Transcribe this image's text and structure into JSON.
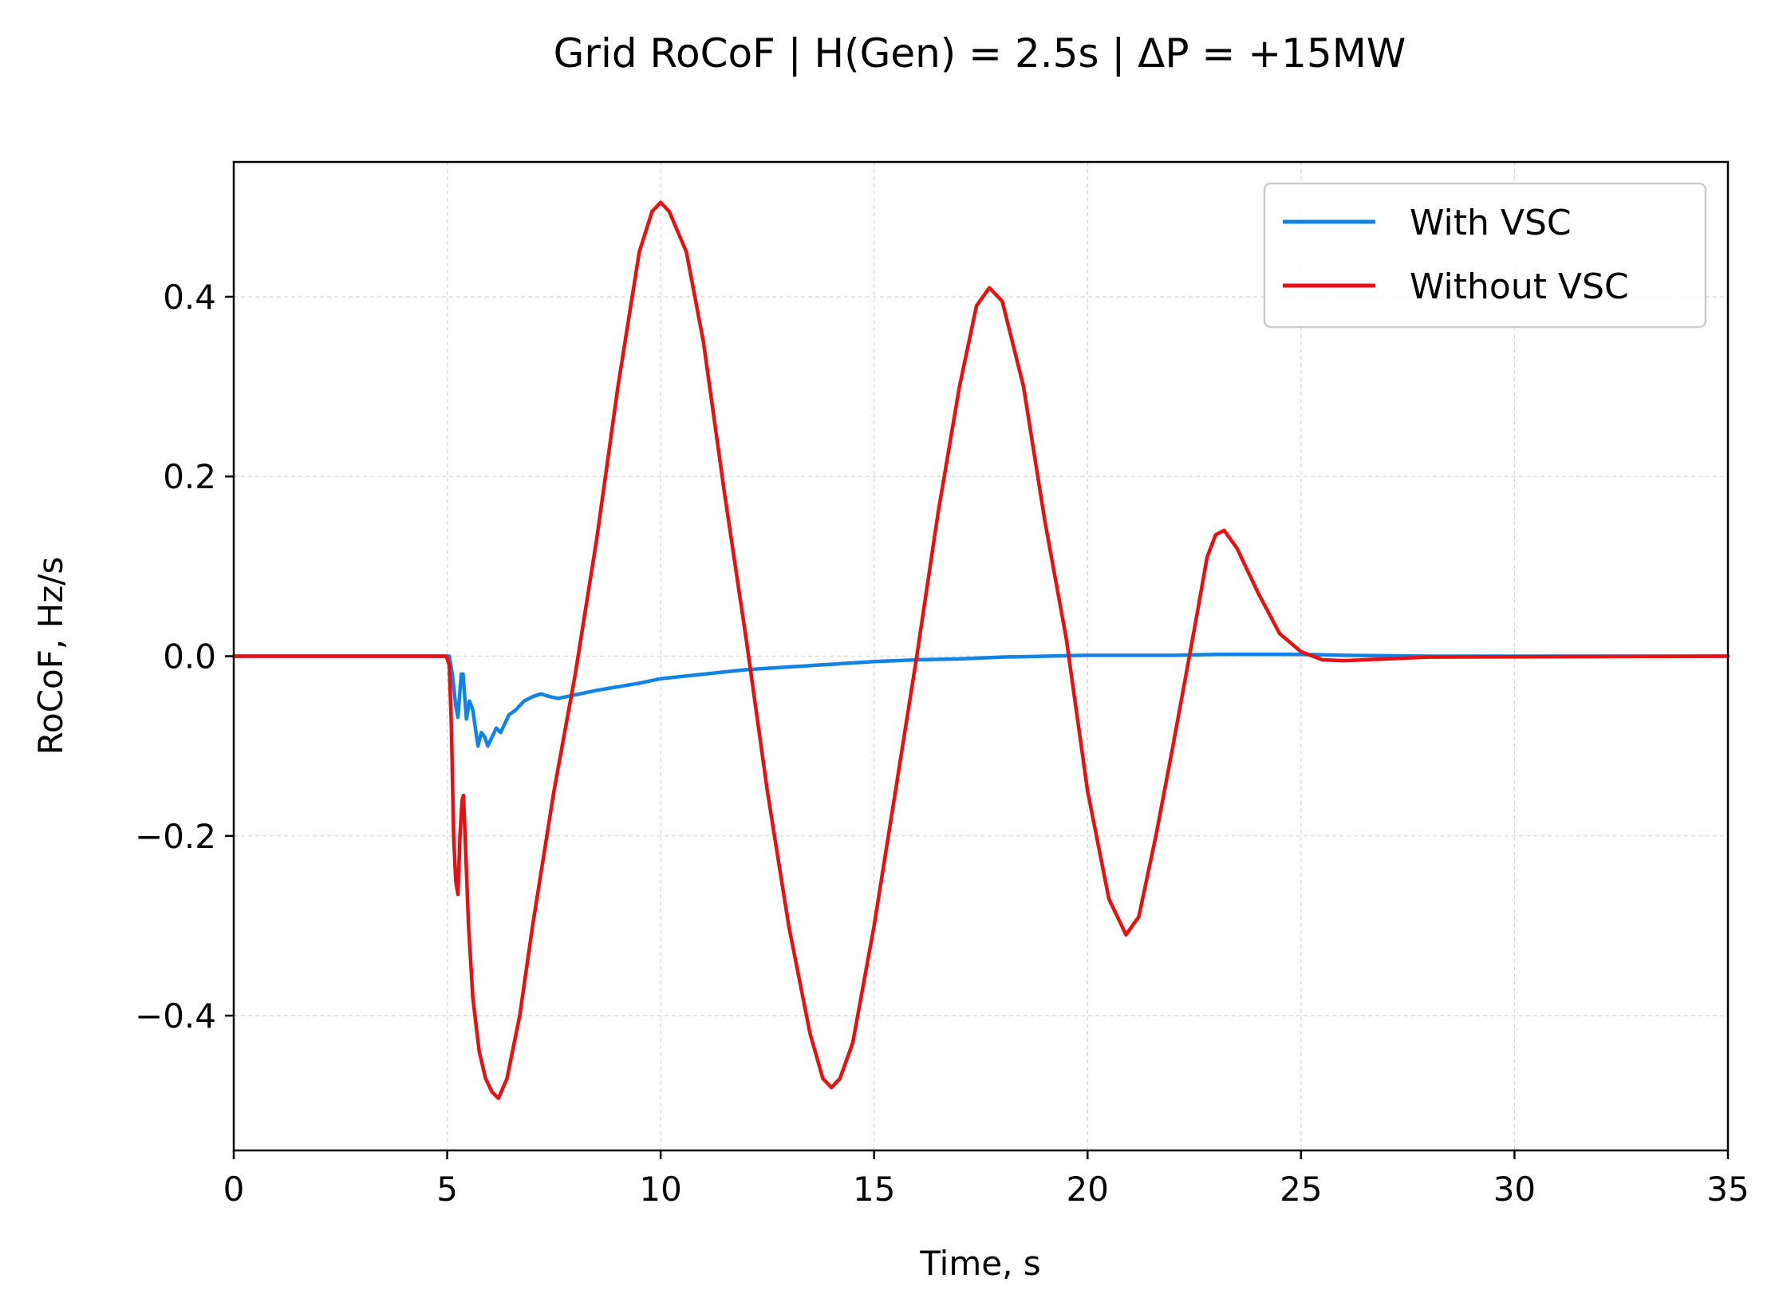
{
  "chart_data": {
    "type": "line",
    "title": "Grid RoCoF  |  H(Gen) = 2.5s  |  ΔP = +15MW",
    "xlabel": "Time, s",
    "ylabel": "RoCoF, Hz/s",
    "xlim": [
      0,
      35
    ],
    "ylim": [
      -0.55,
      0.55
    ],
    "xticks": [
      0,
      5,
      10,
      15,
      20,
      25,
      30,
      35
    ],
    "xtick_labels": [
      "0",
      "5",
      "10",
      "15",
      "20",
      "25",
      "30",
      "35"
    ],
    "yticks": [
      -0.4,
      -0.2,
      0.0,
      0.2,
      0.4
    ],
    "ytick_labels": [
      "−0.4",
      "−0.2",
      "0.0",
      "0.2",
      "0.4"
    ],
    "grid": true,
    "legend": "top-right",
    "series": [
      {
        "name": "With VSC",
        "color": "#1283e6",
        "points": [
          [
            0,
            0
          ],
          [
            4.98,
            0
          ],
          [
            5.05,
            0
          ],
          [
            5.12,
            -0.02
          ],
          [
            5.2,
            -0.055
          ],
          [
            5.25,
            -0.068
          ],
          [
            5.33,
            -0.02
          ],
          [
            5.37,
            -0.02
          ],
          [
            5.45,
            -0.07
          ],
          [
            5.52,
            -0.05
          ],
          [
            5.6,
            -0.06
          ],
          [
            5.66,
            -0.08
          ],
          [
            5.72,
            -0.1
          ],
          [
            5.8,
            -0.085
          ],
          [
            5.88,
            -0.09
          ],
          [
            5.95,
            -0.1
          ],
          [
            6.05,
            -0.09
          ],
          [
            6.15,
            -0.08
          ],
          [
            6.25,
            -0.085
          ],
          [
            6.35,
            -0.075
          ],
          [
            6.45,
            -0.065
          ],
          [
            6.6,
            -0.06
          ],
          [
            6.8,
            -0.05
          ],
          [
            7.0,
            -0.045
          ],
          [
            7.2,
            -0.042
          ],
          [
            7.4,
            -0.045
          ],
          [
            7.6,
            -0.047
          ],
          [
            8.0,
            -0.043
          ],
          [
            8.5,
            -0.038
          ],
          [
            9.0,
            -0.034
          ],
          [
            9.5,
            -0.03
          ],
          [
            10.0,
            -0.025
          ],
          [
            11.0,
            -0.02
          ],
          [
            12.0,
            -0.015
          ],
          [
            13.0,
            -0.012
          ],
          [
            14.0,
            -0.009
          ],
          [
            15.0,
            -0.006
          ],
          [
            16.0,
            -0.004
          ],
          [
            17.0,
            -0.003
          ],
          [
            18.0,
            -0.001
          ],
          [
            19.0,
            0.0
          ],
          [
            20.0,
            0.001
          ],
          [
            22.0,
            0.001
          ],
          [
            23.0,
            0.002
          ],
          [
            24.0,
            0.002
          ],
          [
            25.0,
            0.002
          ],
          [
            26.0,
            0.001
          ],
          [
            28.0,
            0.0
          ],
          [
            35.0,
            0.0
          ]
        ]
      },
      {
        "name": "Without VSC",
        "color": "#e81010",
        "points": [
          [
            0,
            0
          ],
          [
            4.98,
            0
          ],
          [
            5.05,
            -0.01
          ],
          [
            5.1,
            -0.08
          ],
          [
            5.15,
            -0.2
          ],
          [
            5.2,
            -0.25
          ],
          [
            5.25,
            -0.265
          ],
          [
            5.3,
            -0.2
          ],
          [
            5.35,
            -0.16
          ],
          [
            5.38,
            -0.155
          ],
          [
            5.42,
            -0.2
          ],
          [
            5.5,
            -0.3
          ],
          [
            5.6,
            -0.38
          ],
          [
            5.75,
            -0.44
          ],
          [
            5.9,
            -0.47
          ],
          [
            6.05,
            -0.485
          ],
          [
            6.2,
            -0.492
          ],
          [
            6.4,
            -0.47
          ],
          [
            6.7,
            -0.4
          ],
          [
            7.0,
            -0.3
          ],
          [
            7.5,
            -0.15
          ],
          [
            8.0,
            -0.02
          ],
          [
            8.5,
            0.13
          ],
          [
            9.0,
            0.3
          ],
          [
            9.5,
            0.45
          ],
          [
            9.8,
            0.495
          ],
          [
            10.0,
            0.505
          ],
          [
            10.2,
            0.495
          ],
          [
            10.6,
            0.45
          ],
          [
            11.0,
            0.35
          ],
          [
            11.5,
            0.18
          ],
          [
            12.0,
            0.02
          ],
          [
            12.5,
            -0.15
          ],
          [
            13.0,
            -0.3
          ],
          [
            13.5,
            -0.42
          ],
          [
            13.8,
            -0.47
          ],
          [
            14.0,
            -0.48
          ],
          [
            14.2,
            -0.47
          ],
          [
            14.5,
            -0.43
          ],
          [
            15.0,
            -0.3
          ],
          [
            15.5,
            -0.15
          ],
          [
            16.0,
            0.0
          ],
          [
            16.5,
            0.16
          ],
          [
            17.0,
            0.3
          ],
          [
            17.4,
            0.39
          ],
          [
            17.7,
            0.41
          ],
          [
            18.0,
            0.395
          ],
          [
            18.5,
            0.3
          ],
          [
            19.0,
            0.15
          ],
          [
            19.5,
            0.02
          ],
          [
            20.0,
            -0.15
          ],
          [
            20.5,
            -0.27
          ],
          [
            20.9,
            -0.31
          ],
          [
            21.2,
            -0.29
          ],
          [
            21.6,
            -0.2
          ],
          [
            22.0,
            -0.1
          ],
          [
            22.5,
            0.03
          ],
          [
            22.8,
            0.11
          ],
          [
            23.0,
            0.135
          ],
          [
            23.2,
            0.14
          ],
          [
            23.5,
            0.12
          ],
          [
            24.0,
            0.07
          ],
          [
            24.5,
            0.025
          ],
          [
            25.0,
            0.005
          ],
          [
            25.5,
            -0.004
          ],
          [
            26.0,
            -0.005
          ],
          [
            27.0,
            -0.003
          ],
          [
            28.0,
            -0.001
          ],
          [
            35.0,
            0.0
          ]
        ]
      }
    ]
  }
}
